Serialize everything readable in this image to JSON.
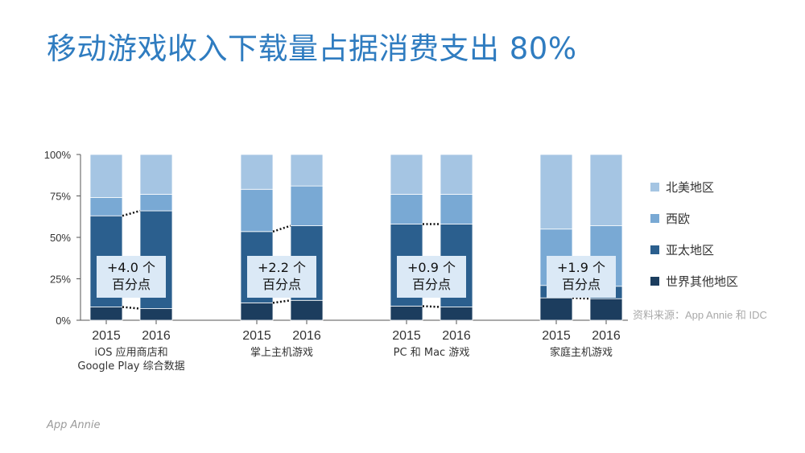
{
  "title": "移动游戏收入下载量占据消费支出 80%",
  "source": "资料来源：App Annie 和 IDC",
  "logo": "App Annie",
  "colors": {
    "north_america": "#a5c5e3",
    "western_europe": "#79a9d4",
    "asia_pacific": "#2b5f8e",
    "rest_of_world": "#1c3d5e",
    "title": "#2f7cc0"
  },
  "chart_data": {
    "type": "bar",
    "stacked": true,
    "y_unit": "%",
    "ylim": [
      0,
      100
    ],
    "yticks": [
      "0%",
      "25%",
      "50%",
      "75%",
      "100%"
    ],
    "groups": [
      {
        "label": "iOS 应用商店和\nGoogle Play 综合数据",
        "annotation": "+4.0 个\n百分点",
        "bars": [
          {
            "year": "2015",
            "values": {
              "rest_of_world": 8,
              "asia_pacific": 55,
              "western_europe": 11,
              "north_america": 26
            }
          },
          {
            "year": "2016",
            "values": {
              "rest_of_world": 7,
              "asia_pacific": 59,
              "western_europe": 10,
              "north_america": 24
            }
          }
        ]
      },
      {
        "label": "掌上主机游戏",
        "annotation": "+2.2 个\n百分点",
        "bars": [
          {
            "year": "2015",
            "values": {
              "rest_of_world": 10.5,
              "asia_pacific": 43,
              "western_europe": 25.5,
              "north_america": 21
            }
          },
          {
            "year": "2016",
            "values": {
              "rest_of_world": 12,
              "asia_pacific": 45,
              "western_europe": 24,
              "north_america": 19
            }
          }
        ]
      },
      {
        "label": "PC 和 Mac 游戏",
        "annotation": "+0.9 个\n百分点",
        "bars": [
          {
            "year": "2015",
            "values": {
              "rest_of_world": 8.5,
              "asia_pacific": 49.5,
              "western_europe": 18,
              "north_america": 24
            }
          },
          {
            "year": "2016",
            "values": {
              "rest_of_world": 8,
              "asia_pacific": 50,
              "western_europe": 18,
              "north_america": 24
            }
          }
        ]
      },
      {
        "label": "家庭主机游戏",
        "annotation": "+1.9 个\n百分点",
        "bars": [
          {
            "year": "2015",
            "values": {
              "rest_of_world": 13.5,
              "asia_pacific": 7.5,
              "western_europe": 34,
              "north_america": 45
            }
          },
          {
            "year": "2016",
            "values": {
              "rest_of_world": 13,
              "asia_pacific": 7.5,
              "western_europe": 36.5,
              "north_america": 43
            }
          }
        ]
      }
    ],
    "legend": [
      {
        "key": "north_america",
        "label": "北美地区"
      },
      {
        "key": "western_europe",
        "label": "西欧"
      },
      {
        "key": "asia_pacific",
        "label": "亚太地区"
      },
      {
        "key": "rest_of_world",
        "label": "世界其他地区"
      }
    ],
    "legend_position": "right"
  }
}
